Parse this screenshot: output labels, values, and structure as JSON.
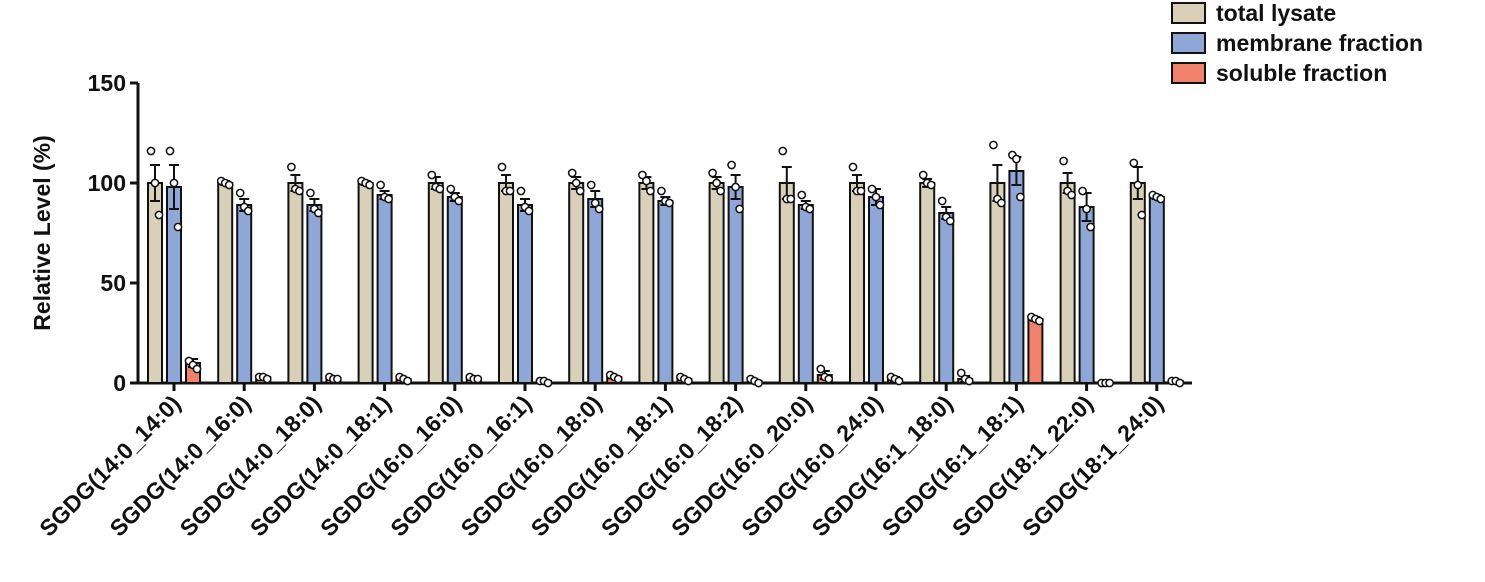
{
  "chart_data": {
    "type": "bar",
    "y_label": "Relative Level (%)",
    "categories": [
      "SGDG(14:0_14:0)",
      "SGDG(14:0_16:0)",
      "SGDG(14:0_18:0)",
      "SGDG(14:0_18:1)",
      "SGDG(16:0_16:0)",
      "SGDG(16:0_16:1)",
      "SGDG(16:0_18:0)",
      "SGDG(16:0_18:1)",
      "SGDG(16:0_18:2)",
      "SGDG(16:0_20:0)",
      "SGDG(16:0_24:0)",
      "SGDG(16:1_18:0)",
      "SGDG(16:1_18:1)",
      "SGDG(18:1_22:0)",
      "SGDG(18:1_24:0)"
    ],
    "series": [
      {
        "name": "total lysate",
        "color": "#d9d0b9",
        "values": [
          100,
          100,
          100,
          100,
          100,
          100,
          100,
          100,
          100,
          100,
          100,
          100,
          100,
          100,
          100
        ],
        "errors": [
          9,
          1,
          4,
          1,
          3,
          4,
          3,
          3,
          3,
          8,
          4,
          2,
          9,
          5,
          8
        ],
        "points": [
          [
            116,
            100,
            84
          ],
          [
            101,
            100,
            99
          ],
          [
            108,
            97,
            96
          ],
          [
            101,
            100,
            99
          ],
          [
            104,
            98,
            97
          ],
          [
            108,
            96,
            96
          ],
          [
            105,
            100,
            96
          ],
          [
            104,
            101,
            96
          ],
          [
            105,
            100,
            96
          ],
          [
            116,
            92,
            92
          ],
          [
            108,
            96,
            96
          ],
          [
            104,
            100,
            99
          ],
          [
            119,
            92,
            90
          ],
          [
            111,
            96,
            94
          ],
          [
            110,
            99,
            84
          ]
        ]
      },
      {
        "name": "membrane fraction",
        "color": "#8fa7d7",
        "values": [
          98,
          89,
          89,
          94,
          93,
          89,
          92,
          91,
          98,
          89,
          93,
          85,
          106,
          88,
          93
        ],
        "errors": [
          11,
          3,
          3,
          2,
          2,
          3,
          4,
          2,
          6,
          2,
          4,
          3,
          7,
          7,
          1
        ],
        "points": [
          [
            116,
            100,
            78
          ],
          [
            95,
            88,
            86
          ],
          [
            95,
            87,
            85
          ],
          [
            99,
            93,
            92
          ],
          [
            97,
            93,
            91
          ],
          [
            96,
            88,
            86
          ],
          [
            99,
            90,
            87
          ],
          [
            96,
            91,
            90
          ],
          [
            109,
            98,
            87
          ],
          [
            94,
            88,
            87
          ],
          [
            97,
            93,
            89
          ],
          [
            91,
            83,
            81
          ],
          [
            114,
            112,
            93
          ],
          [
            96,
            87,
            78
          ],
          [
            94,
            93,
            92
          ]
        ]
      },
      {
        "name": "soluble fraction",
        "color": "#f0826c",
        "values": [
          10,
          3,
          2,
          2,
          2,
          1,
          3,
          2,
          1,
          4,
          2,
          2,
          32,
          0,
          1
        ],
        "errors": [
          2,
          0.5,
          0.5,
          0.5,
          0.5,
          0.3,
          0.5,
          0.5,
          0.5,
          2,
          1,
          1.5,
          1,
          0,
          0.3
        ],
        "points": [
          [
            11,
            9,
            7
          ],
          [
            3,
            3,
            2
          ],
          [
            3,
            2,
            2
          ],
          [
            3,
            2,
            1
          ],
          [
            3,
            2,
            2
          ],
          [
            1,
            1,
            0
          ],
          [
            4,
            3,
            2
          ],
          [
            3,
            2,
            1
          ],
          [
            2,
            1,
            0
          ],
          [
            7,
            3,
            2
          ],
          [
            3,
            2,
            1
          ],
          [
            5,
            2,
            1
          ],
          [
            33,
            32,
            31
          ],
          [
            0,
            0,
            0
          ],
          [
            1,
            1,
            0
          ]
        ]
      }
    ],
    "ylim": [
      0,
      150
    ],
    "yticks": [
      0,
      50,
      100,
      150
    ],
    "legend": "top-right"
  }
}
